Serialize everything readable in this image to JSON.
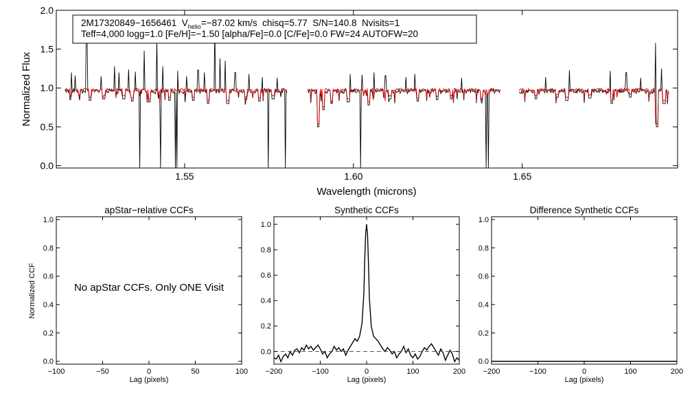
{
  "chart_data": [
    {
      "type": "line",
      "title": "",
      "xlabel": "Wavelength (microns)",
      "ylabel": "Normalized Flux",
      "xlim": [
        1.512,
        1.696
      ],
      "ylim": [
        -0.03,
        2.0
      ],
      "xticks": [
        1.55,
        1.6,
        1.65
      ],
      "xtick_labels": [
        "1.55",
        "1.60",
        "1.65"
      ],
      "yticks": [
        0.0,
        0.5,
        1.0,
        1.5,
        2.0
      ],
      "ytick_labels": [
        "0.0",
        "0.5",
        "1.0",
        "1.5",
        "2.0"
      ],
      "grid": false,
      "annotation": {
        "line1_star": "2M17320849−1656461",
        "line1_v": "V",
        "line1_v_sub": "helio",
        "line1_rest": "=−87.02 km/s  chisq=5.77  S/N=140.8  Nvisits=1",
        "line2": "Teff=4,000 logg=1.0 [Fe/H]=−1.50 [alpha/Fe]=0.0 [C/Fe]=0.0 FW=24 AUTOFW=20"
      },
      "series": [
        {
          "color": "#000000",
          "continuum": 0.96,
          "continuum_model": 0.975,
          "segments": [
            [
              1.5145,
              1.5805
            ],
            [
              1.5865,
              1.6435
            ],
            [
              1.649,
              1.6935
            ]
          ],
          "emission_spikes": [
            [
              1.5165,
              1.2
            ],
            [
              1.5175,
              1.16
            ],
            [
              1.521,
              1.8
            ],
            [
              1.5252,
              1.15
            ],
            [
              1.5292,
              1.28
            ],
            [
              1.5305,
              1.2
            ],
            [
              1.5335,
              1.24
            ],
            [
              1.5355,
              1.21
            ],
            [
              1.538,
              1.48
            ],
            [
              1.5418,
              1.62
            ],
            [
              1.5435,
              1.28
            ],
            [
              1.548,
              1.22
            ],
            [
              1.5505,
              1.15
            ],
            [
              1.554,
              1.23
            ],
            [
              1.5558,
              1.2
            ],
            [
              1.559,
              1.8
            ],
            [
              1.5605,
              1.38
            ],
            [
              1.562,
              1.35
            ],
            [
              1.565,
              1.2
            ],
            [
              1.569,
              1.18
            ],
            [
              1.573,
              1.14
            ],
            [
              1.5775,
              1.13
            ],
            [
              1.599,
              1.18
            ],
            [
              1.6025,
              1.17
            ],
            [
              1.606,
              1.2
            ],
            [
              1.6095,
              1.16
            ],
            [
              1.6155,
              1.14
            ],
            [
              1.6182,
              1.18
            ],
            [
              1.632,
              1.13
            ],
            [
              1.657,
              1.14
            ],
            [
              1.664,
              1.23
            ],
            [
              1.676,
              1.22
            ],
            [
              1.6808,
              1.2
            ],
            [
              1.685,
              1.13
            ],
            [
              1.6895,
              1.58
            ],
            [
              1.6912,
              1.25
            ],
            [
              1.6945,
              1.18
            ]
          ],
          "absorption_dips": [
            [
              1.5163,
              0.85
            ],
            [
              1.522,
              0.84
            ],
            [
              1.5262,
              0.86
            ],
            [
              1.532,
              0.86
            ],
            [
              1.5345,
              0.83
            ],
            [
              1.5395,
              0.82
            ],
            [
              1.5455,
              0.84
            ],
            [
              1.5525,
              0.84
            ],
            [
              1.557,
              0.8
            ],
            [
              1.5628,
              0.8
            ],
            [
              1.5682,
              0.85
            ],
            [
              1.5722,
              0.83
            ],
            [
              1.5762,
              0.86
            ],
            [
              1.5895,
              0.5
            ],
            [
              1.5912,
              0.72
            ],
            [
              1.5935,
              0.8
            ],
            [
              1.5985,
              0.82
            ],
            [
              1.6045,
              0.78
            ],
            [
              1.611,
              0.86
            ],
            [
              1.619,
              0.83
            ],
            [
              1.6248,
              0.85
            ],
            [
              1.629,
              0.86
            ],
            [
              1.638,
              0.84
            ],
            [
              1.654,
              0.86
            ],
            [
              1.6605,
              0.88
            ],
            [
              1.6632,
              0.84
            ],
            [
              1.67,
              0.87
            ],
            [
              1.6765,
              0.8
            ],
            [
              1.682,
              0.88
            ],
            [
              1.6898,
              0.5
            ],
            [
              1.692,
              0.8
            ]
          ],
          "deep_dips": [
            1.5368,
            1.5428,
            1.5472,
            1.5478,
            1.5748,
            1.5798,
            1.6022,
            1.6393,
            1.64
          ]
        },
        {
          "color": "#dd0000"
        }
      ]
    },
    {
      "type": "line",
      "title": "apStar−relative CCFs",
      "xlabel": "Lag (pixels)",
      "ylabel": "Normalized CCF",
      "xlim": [
        -100,
        100
      ],
      "ylim": [
        -0.02,
        1.02
      ],
      "xticks": [
        -100,
        -50,
        0,
        50,
        100
      ],
      "xtick_labels": [
        "−100",
        "−50",
        "0",
        "50",
        "100"
      ],
      "yticks": [
        0.0,
        0.2,
        0.4,
        0.6,
        0.8,
        1.0
      ],
      "ytick_labels": [
        "0.0",
        "0.2",
        "0.4",
        "0.6",
        "0.8",
        "1.0"
      ],
      "grid": false,
      "message": "No apStar CCFs.  Only ONE Visit",
      "series": []
    },
    {
      "type": "line",
      "title": "Synthetic CCFs",
      "xlabel": "Lag (pixels)",
      "ylabel": "",
      "xlim": [
        -200,
        200
      ],
      "ylim": [
        -0.1,
        1.06
      ],
      "xticks": [
        -200,
        -100,
        0,
        100,
        200
      ],
      "xtick_labels": [
        "−200",
        "−100",
        "0",
        "100",
        "200"
      ],
      "yticks": [
        0.0,
        0.2,
        0.4,
        0.6,
        0.8,
        1.0
      ],
      "ytick_labels": [
        "0.0",
        "0.2",
        "0.4",
        "0.6",
        "0.8",
        "1.0"
      ],
      "grid": false,
      "series": [
        {
          "color": "#000000",
          "style": "solid",
          "x": [
            -200,
            -195,
            -190,
            -185,
            -180,
            -175,
            -170,
            -165,
            -160,
            -155,
            -150,
            -145,
            -140,
            -135,
            -130,
            -125,
            -120,
            -115,
            -110,
            -105,
            -100,
            -95,
            -90,
            -85,
            -80,
            -75,
            -70,
            -65,
            -60,
            -55,
            -50,
            -45,
            -40,
            -35,
            -30,
            -25,
            -20,
            -15,
            -10,
            -6,
            -4,
            -2,
            0,
            2,
            4,
            6,
            10,
            15,
            20,
            25,
            30,
            35,
            40,
            45,
            50,
            55,
            60,
            65,
            70,
            75,
            80,
            85,
            90,
            95,
            100,
            105,
            110,
            115,
            120,
            125,
            130,
            135,
            140,
            145,
            150,
            155,
            160,
            165,
            170,
            175,
            180,
            185,
            190,
            195,
            200
          ],
          "y": [
            -0.05,
            -0.06,
            -0.03,
            -0.08,
            -0.04,
            -0.02,
            -0.05,
            0.0,
            -0.03,
            0.01,
            0.02,
            -0.01,
            0.03,
            0.01,
            0.05,
            0.02,
            0.04,
            0.01,
            0.03,
            0.05,
            0.02,
            -0.02,
            0.0,
            -0.05,
            -0.02,
            0.0,
            0.04,
            0.01,
            0.03,
            0.0,
            0.02,
            -0.03,
            0.01,
            0.04,
            0.07,
            0.1,
            0.08,
            0.12,
            0.22,
            0.45,
            0.72,
            0.93,
            1.0,
            0.92,
            0.7,
            0.42,
            0.2,
            0.12,
            0.1,
            0.08,
            0.05,
            0.02,
            0.0,
            0.03,
            0.01,
            -0.02,
            0.0,
            -0.05,
            -0.02,
            0.0,
            0.04,
            -0.01,
            0.02,
            -0.03,
            -0.05,
            -0.02,
            -0.06,
            -0.04,
            0.0,
            0.03,
            0.01,
            0.04,
            0.06,
            0.03,
            0.0,
            -0.03,
            0.02,
            -0.01,
            -0.07,
            -0.03,
            0.01,
            -0.02,
            -0.08,
            -0.05,
            -0.07
          ]
        },
        {
          "color": "#000000",
          "style": "dashed",
          "x": [
            -200,
            200
          ],
          "y": [
            0.0,
            0.0
          ]
        }
      ]
    },
    {
      "type": "line",
      "title": "Difference Synthetic CCFs",
      "xlabel": "Lag (pixels)",
      "ylabel": "",
      "xlim": [
        -200,
        200
      ],
      "ylim": [
        -0.02,
        1.02
      ],
      "xticks": [
        -200,
        -100,
        0,
        100,
        200
      ],
      "xtick_labels": [
        "−200",
        "−100",
        "0",
        "100",
        "200"
      ],
      "yticks": [
        0.0,
        0.2,
        0.4,
        0.6,
        0.8,
        1.0
      ],
      "ytick_labels": [
        "0.0",
        "0.2",
        "0.4",
        "0.6",
        "0.8",
        "1.0"
      ],
      "grid": false,
      "series": [
        {
          "color": "#000000",
          "style": "solid",
          "x": [
            -200,
            200
          ],
          "y": [
            0.0,
            0.0
          ]
        }
      ]
    }
  ]
}
